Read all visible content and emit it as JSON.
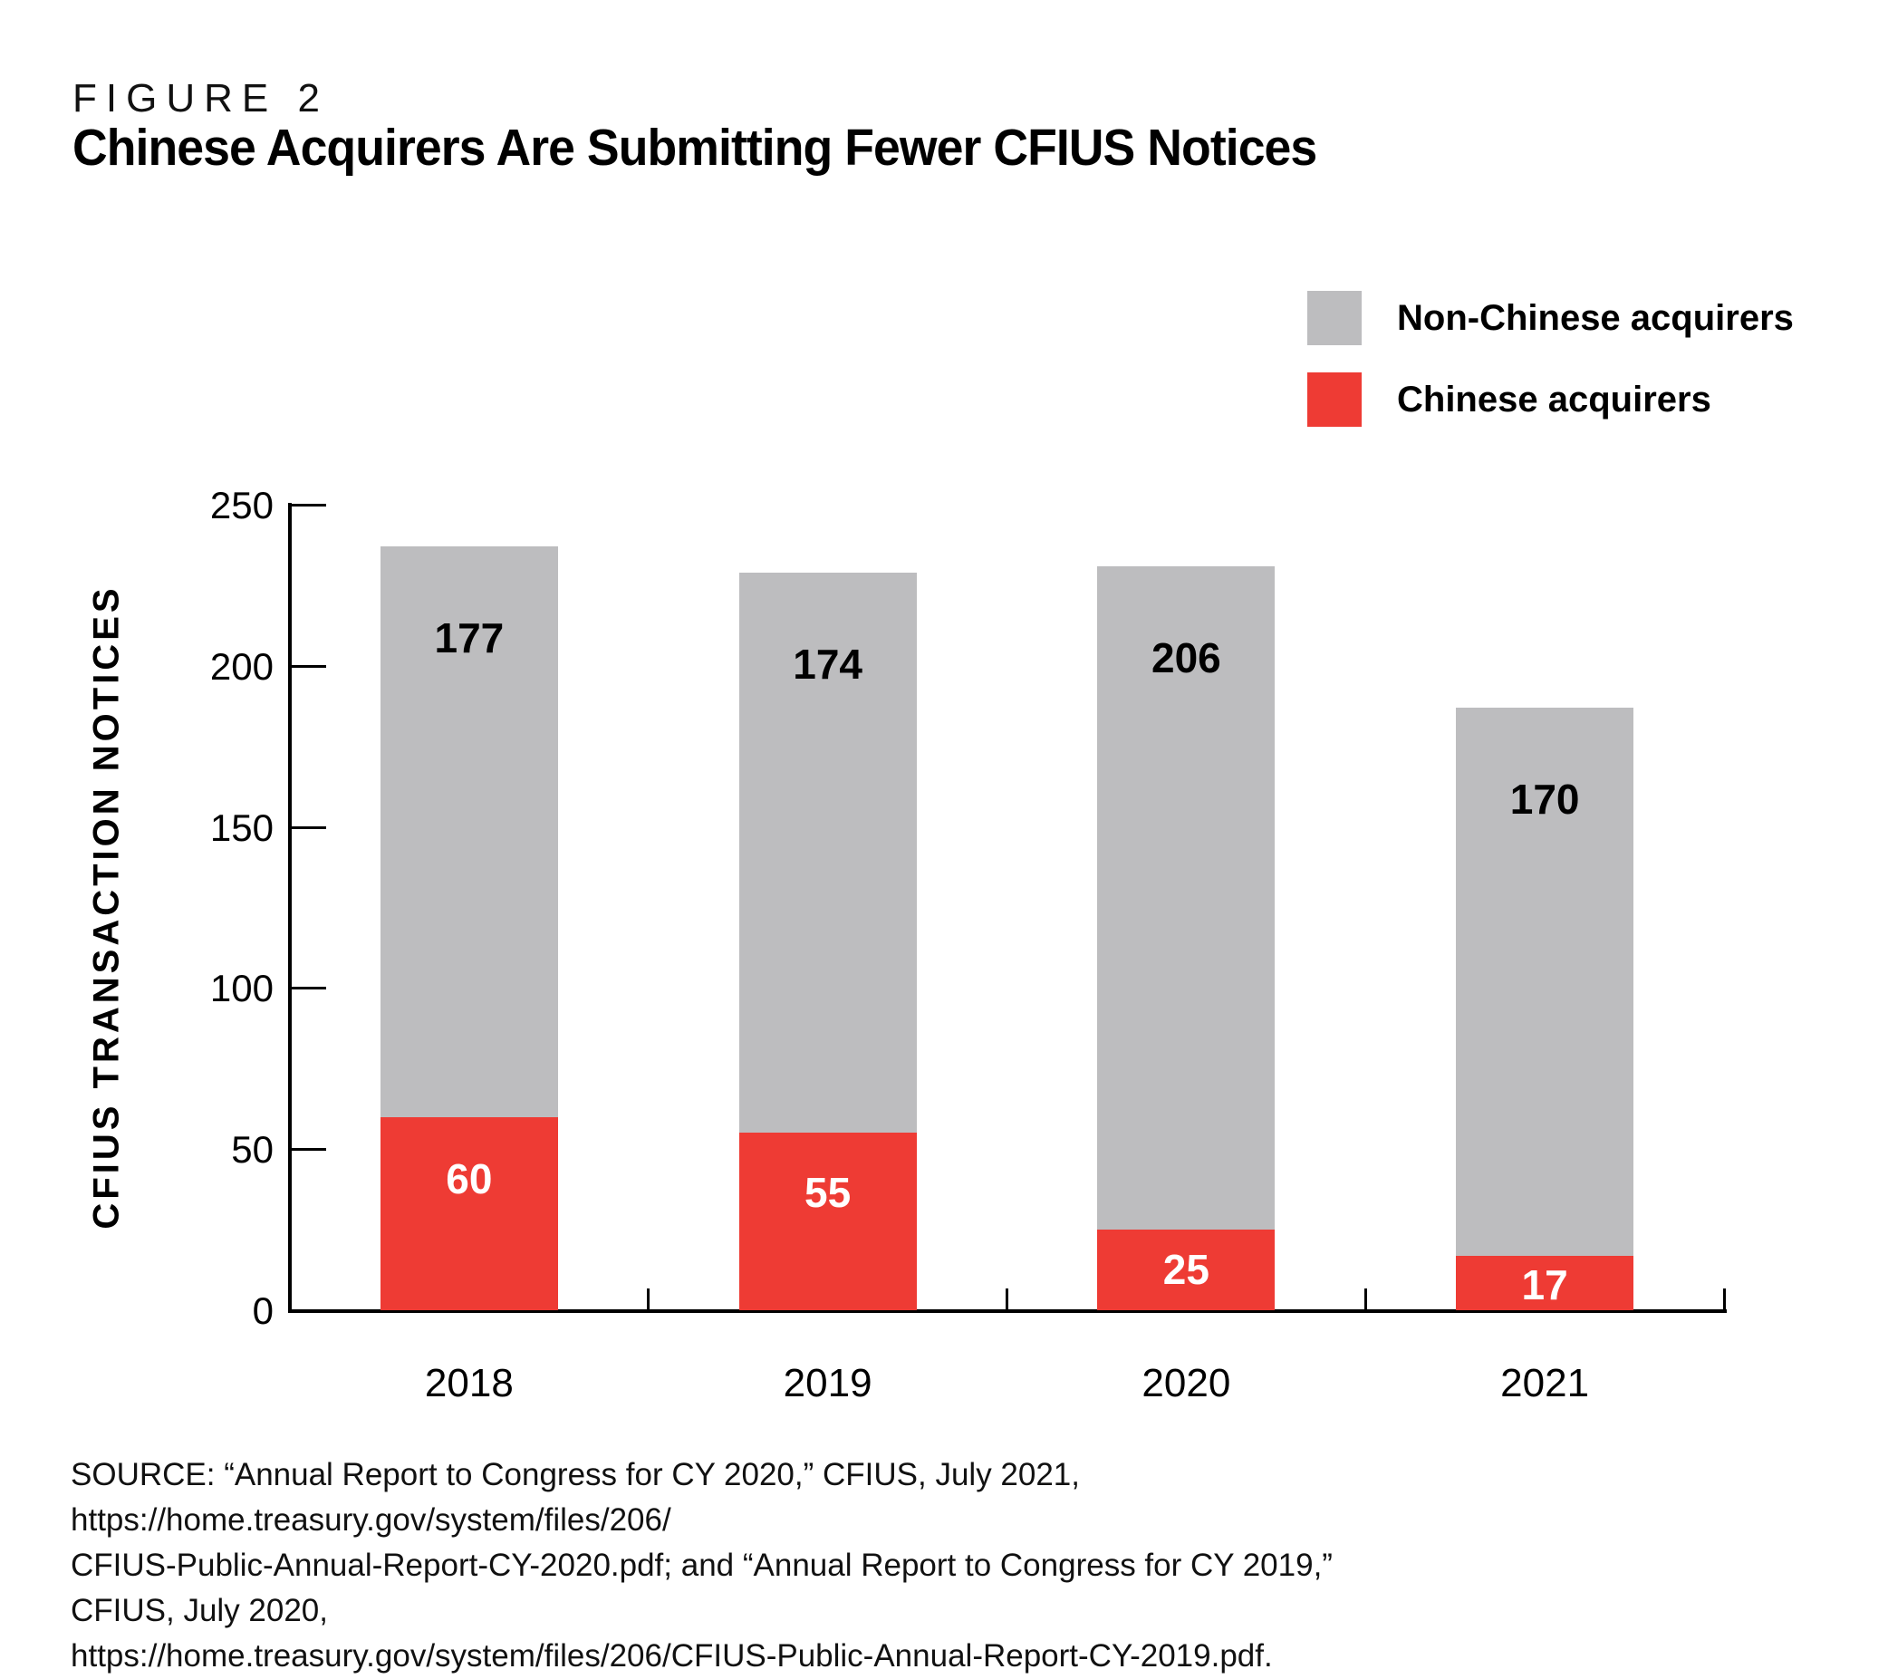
{
  "header": {
    "figure_label": "FIGURE 2",
    "title": "Chinese Acquirers Are Submitting Fewer CFIUS Notices"
  },
  "legend": [
    {
      "label": "Non-Chinese acquirers",
      "color": "#bdbdbf"
    },
    {
      "label": "Chinese acquirers",
      "color": "#ee3b34"
    }
  ],
  "colors": {
    "chinese_red": "#ee3b34",
    "non_chinese_gray": "#bdbdbf",
    "axis_black": "#000000",
    "label_on_red": "#ffffff",
    "label_on_gray": "#000000"
  },
  "chart_data": {
    "type": "bar",
    "stacked": true,
    "title": "Chinese Acquirers Are Submitting Fewer CFIUS Notices",
    "categories": [
      "2018",
      "2019",
      "2020",
      "2021"
    ],
    "series": [
      {
        "name": "Chinese acquirers",
        "color": "#ee3b34",
        "label_color": "#ffffff",
        "values": [
          60,
          55,
          25,
          17
        ]
      },
      {
        "name": "Non-Chinese acquirers",
        "color": "#bdbdbf",
        "label_color": "#000000",
        "values": [
          177,
          174,
          206,
          170
        ]
      }
    ],
    "totals": [
      237,
      229,
      231,
      187
    ],
    "xlabel": "",
    "ylabel": "CFIUS TRANSACTION NOTICES",
    "ylim": [
      0,
      250
    ],
    "yticks": [
      0,
      50,
      100,
      150,
      200,
      250
    ],
    "grid": false,
    "legend_position": "top-right",
    "data_labels": true
  },
  "source": {
    "lines": [
      "SOURCE: “Annual Report to Congress for CY 2020,” CFIUS, July 2021, https://home.treasury.gov/system/files/206/",
      "CFIUS-Public-Annual-Report-CY-2020.pdf; and “Annual Report to Congress for CY 2019,” CFIUS, July 2020,",
      "https://home.treasury.gov/system/files/206/CFIUS-Public-Annual-Report-CY-2019.pdf."
    ]
  }
}
